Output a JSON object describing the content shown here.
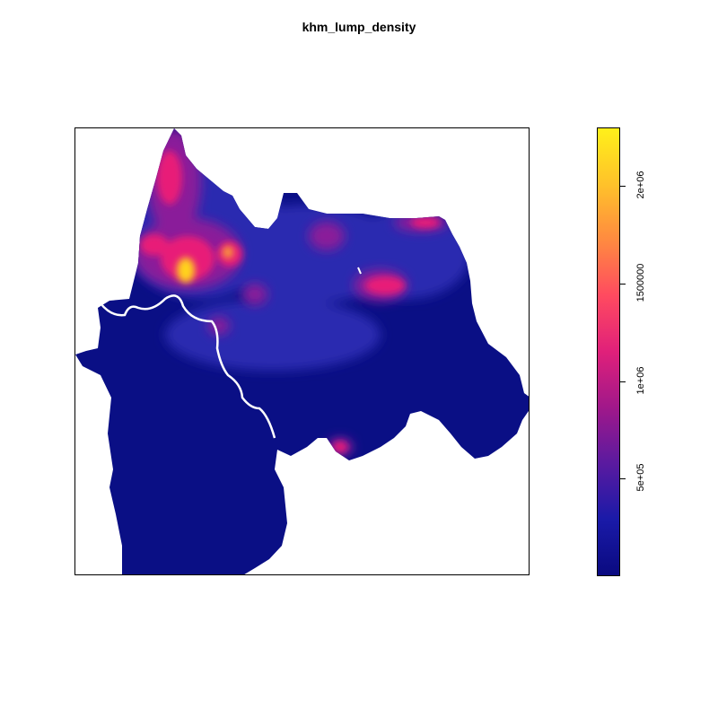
{
  "plot": {
    "title": "khm_lump_density"
  },
  "legend": {
    "colors": [
      "#0a0a80",
      "#1a1aa8",
      "#5a1aa0",
      "#a0188a",
      "#e0207a",
      "#ff4a60",
      "#ff8a40",
      "#ffc22a",
      "#fff01a"
    ],
    "range": [
      0,
      2300000
    ],
    "ticks": [
      {
        "value": 500000,
        "label": "5e+05"
      },
      {
        "value": 1000000,
        "label": "1e+06"
      },
      {
        "value": 1500000,
        "label": "1500000"
      },
      {
        "value": 2000000,
        "label": "2e+06"
      }
    ]
  },
  "map": {
    "background_color": "#0a0f85",
    "hotspot_colors": {
      "low": "#2a2ab0",
      "mid": "#8a1a9a",
      "high": "#e81a78",
      "peak": "#ffd21a"
    }
  }
}
